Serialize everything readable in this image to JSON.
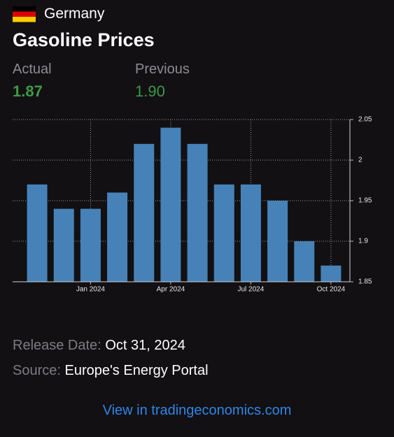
{
  "header": {
    "country": "Germany",
    "title": "Gasoline Prices"
  },
  "stats": {
    "actual_label": "Actual",
    "actual_value": "1.87",
    "previous_label": "Previous",
    "previous_value": "1.90"
  },
  "chart_data": {
    "type": "bar",
    "categories": [
      null,
      null,
      "Jan 2024",
      null,
      null,
      "Apr 2024",
      null,
      null,
      "Jul 2024",
      null,
      null,
      "Oct 2024"
    ],
    "values": [
      1.97,
      1.94,
      1.94,
      1.96,
      2.02,
      2.04,
      2.02,
      1.97,
      1.97,
      1.95,
      1.9,
      1.87
    ],
    "color": "#4682b8",
    "ylim": [
      1.85,
      2.05
    ],
    "yticks": [
      1.85,
      1.9,
      1.95,
      2,
      2.05
    ],
    "grid": true
  },
  "footer": {
    "release_label": "Release Date:",
    "release_date": "Oct 31, 2024",
    "source_label": "Source:",
    "source": "Europe's Energy Portal",
    "link": "View in tradingeconomics.com"
  }
}
